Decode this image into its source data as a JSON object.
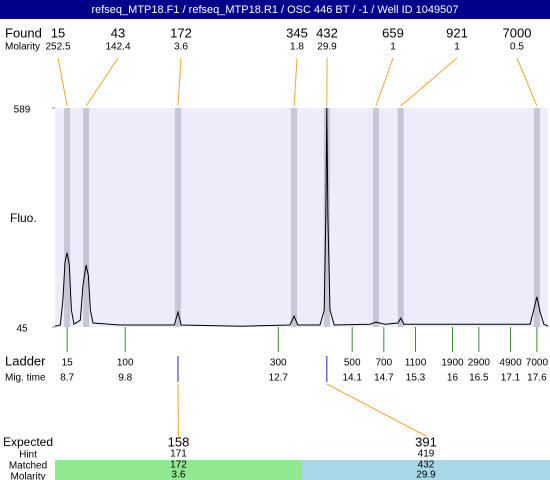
{
  "chart_data": {
    "type": "electropherogram",
    "title": "refseq_MTP18.F1 / refseq_MTP18.R1 / OSC 446 BT / -1 / Well ID 1049507",
    "y_label": "Fluo.",
    "ylim": [
      45,
      589
    ],
    "yticks": [
      45,
      589
    ],
    "xlim": [
      8.47,
      17.81
    ],
    "trace": {
      "x": [
        8.47,
        8.57,
        8.62,
        8.66,
        8.7,
        8.74,
        8.78,
        8.83,
        8.95,
        9.0,
        9.06,
        9.1,
        9.14,
        9.19,
        9.7,
        10.73,
        10.8,
        10.86,
        12.0,
        12.92,
        13.0,
        13.07,
        13.49,
        13.57,
        13.6,
        13.62,
        13.64,
        13.68,
        13.76,
        14.44,
        14.55,
        14.72,
        14.97,
        15.02,
        15.08,
        17.47,
        17.54,
        17.6,
        17.66,
        17.73,
        17.81
      ],
      "y": [
        47,
        50,
        112,
        206,
        229,
        199,
        87,
        52,
        62,
        149,
        199,
        174,
        87,
        55,
        50,
        50,
        82,
        50,
        47,
        50,
        72,
        50,
        50,
        87,
        318,
        589,
        318,
        87,
        50,
        52,
        57,
        52,
        55,
        67,
        52,
        52,
        87,
        120,
        82,
        52,
        47
      ]
    },
    "found": {
      "label": "Found",
      "molarity_label": "Molarity",
      "sizes": [
        15,
        43,
        172,
        345,
        432,
        659,
        921,
        7000
      ],
      "molarity": [
        252.5,
        142.4,
        3.6,
        1.8,
        29.9,
        1,
        1,
        0.5
      ],
      "x": [
        8.7,
        9.06,
        10.8,
        13.0,
        13.62,
        14.55,
        15.02,
        17.6
      ]
    },
    "ladder": {
      "label": "Ladder",
      "time_label": "Mig. time",
      "sizes": [
        15,
        100,
        300,
        500,
        700,
        1100,
        1900,
        2900,
        4900,
        7000
      ],
      "times": [
        8.7,
        9.8,
        12.7,
        14.1,
        14.7,
        15.3,
        16,
        16.5,
        17.1,
        17.6
      ]
    },
    "expected": {
      "label": "Expected",
      "hint_label": "Hint",
      "matched_label": "Matched",
      "molarity_label": "Molarity",
      "sizes": [
        158,
        391
      ],
      "hint": [
        171,
        419
      ],
      "matched": [
        172,
        432
      ],
      "molarity": [
        3.6,
        29.9
      ]
    }
  }
}
